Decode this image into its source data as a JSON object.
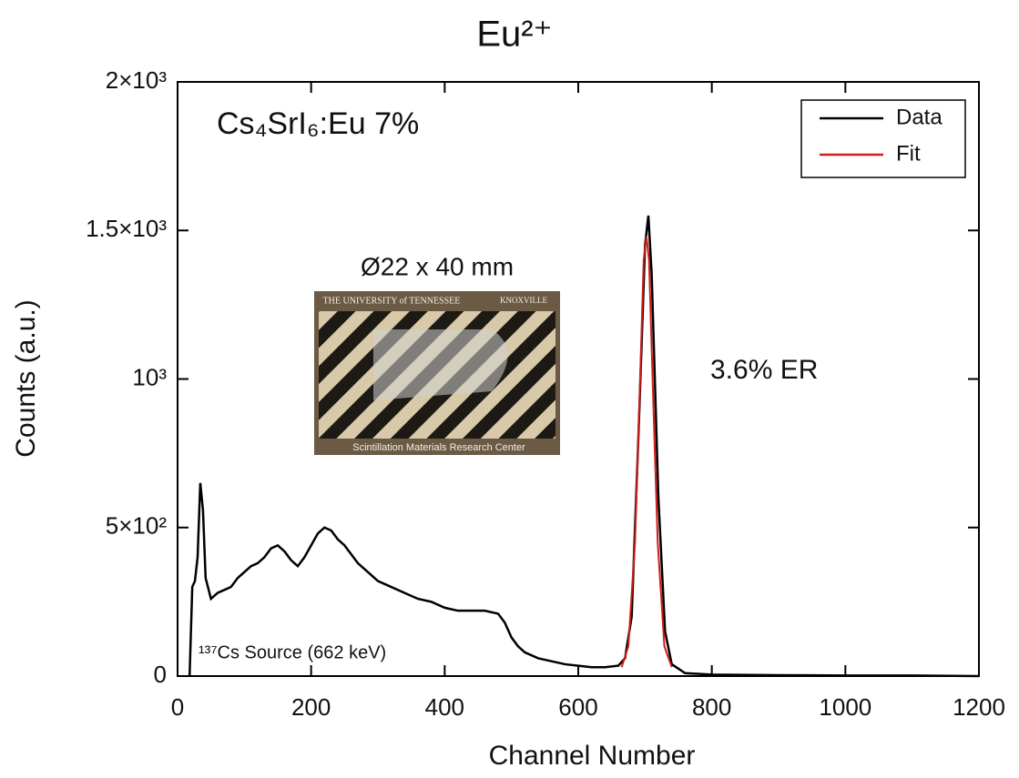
{
  "chart_data": {
    "type": "line",
    "title": "Eu²⁺",
    "x_label": "Channel Number",
    "y_label": "Counts (a.u.)",
    "annotations": [
      "Cs₄SrI₆:Eu 7%",
      "Ø22 x 40 mm",
      "3.6% ER",
      "¹³⁷Cs Source (662 keV)"
    ],
    "inset_texts": [
      "THE UNIVERSITY of TENNESSEE",
      "KNOXVILLE",
      "Scintillation Materials Research Center"
    ],
    "xlim": [
      0,
      1200
    ],
    "ylim": [
      0,
      2000
    ],
    "xticks": [
      0,
      200,
      400,
      600,
      800,
      1000,
      1200
    ],
    "yticks": [
      0,
      {
        "value": 500,
        "label": "5×10²"
      },
      {
        "value": 1000,
        "label": "10³"
      },
      {
        "value": 1500,
        "label": "1.5×10³"
      },
      {
        "value": 2000,
        "label": "2×10³"
      }
    ],
    "legend": "upper right",
    "series": [
      {
        "name": "Data",
        "color": "#000000",
        "x": [
          18,
          22,
          26,
          30,
          34,
          38,
          42,
          50,
          60,
          70,
          80,
          90,
          100,
          110,
          120,
          130,
          140,
          150,
          160,
          170,
          180,
          190,
          200,
          210,
          220,
          230,
          240,
          250,
          260,
          270,
          280,
          290,
          300,
          320,
          340,
          360,
          380,
          400,
          420,
          440,
          460,
          480,
          490,
          500,
          510,
          520,
          540,
          560,
          580,
          600,
          620,
          640,
          660,
          670,
          680,
          690,
          700,
          705,
          710,
          720,
          730,
          740,
          760,
          800,
          900,
          1000,
          1100,
          1200
        ],
        "values": [
          0,
          300,
          320,
          400,
          650,
          560,
          330,
          260,
          280,
          290,
          300,
          330,
          350,
          370,
          380,
          400,
          430,
          440,
          420,
          390,
          370,
          400,
          440,
          480,
          500,
          490,
          460,
          440,
          410,
          380,
          360,
          340,
          320,
          300,
          280,
          260,
          250,
          230,
          220,
          220,
          220,
          210,
          180,
          130,
          100,
          80,
          60,
          50,
          40,
          35,
          30,
          30,
          35,
          60,
          200,
          800,
          1450,
          1550,
          1350,
          600,
          150,
          40,
          10,
          5,
          3,
          2,
          2,
          0
        ]
      },
      {
        "name": "Fit",
        "color": "#d01c1c",
        "x": [
          665,
          675,
          685,
          692,
          698,
          702,
          706,
          712,
          719,
          729,
          740
        ],
        "values": [
          30,
          100,
          450,
          950,
          1400,
          1480,
          1400,
          950,
          450,
          100,
          30
        ]
      }
    ]
  }
}
